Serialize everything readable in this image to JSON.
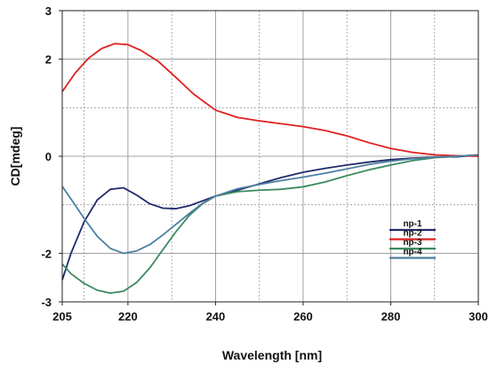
{
  "chart_data": {
    "type": "line",
    "title": "",
    "xlabel": "Wavelength [nm]",
    "ylabel": "CD[mdeg]",
    "xlim": [
      205,
      300
    ],
    "ylim": [
      -3,
      3
    ],
    "x_ticks": [
      205,
      220,
      240,
      260,
      280,
      300
    ],
    "x_tick_labels": [
      "205",
      "220",
      "240",
      "260",
      "280",
      "300"
    ],
    "y_ticks": [
      -3,
      -2,
      0,
      2,
      3
    ],
    "y_tick_labels": [
      "-3",
      "-2",
      "0",
      "2",
      "3"
    ],
    "grid": true,
    "legend_position": "lower-right",
    "series": [
      {
        "name": "np-1",
        "color": "#1f2a6b",
        "points": [
          [
            205,
            -2.55
          ],
          [
            207,
            -2.0
          ],
          [
            210,
            -1.35
          ],
          [
            213,
            -0.9
          ],
          [
            216,
            -0.68
          ],
          [
            219,
            -0.65
          ],
          [
            222,
            -0.8
          ],
          [
            225,
            -0.98
          ],
          [
            228,
            -1.07
          ],
          [
            231,
            -1.08
          ],
          [
            234,
            -1.02
          ],
          [
            237,
            -0.92
          ],
          [
            240,
            -0.82
          ],
          [
            245,
            -0.7
          ],
          [
            250,
            -0.57
          ],
          [
            255,
            -0.44
          ],
          [
            260,
            -0.33
          ],
          [
            265,
            -0.25
          ],
          [
            270,
            -0.18
          ],
          [
            275,
            -0.12
          ],
          [
            280,
            -0.07
          ],
          [
            285,
            -0.04
          ],
          [
            290,
            -0.02
          ],
          [
            295,
            -0.01
          ],
          [
            300,
            0.02
          ]
        ]
      },
      {
        "name": "np-2",
        "color": "#e02020",
        "points": [
          [
            205,
            1.33
          ],
          [
            208,
            1.72
          ],
          [
            211,
            2.02
          ],
          [
            214,
            2.22
          ],
          [
            217,
            2.32
          ],
          [
            220,
            2.3
          ],
          [
            223,
            2.18
          ],
          [
            227,
            1.95
          ],
          [
            231,
            1.62
          ],
          [
            235,
            1.28
          ],
          [
            240,
            0.95
          ],
          [
            245,
            0.8
          ],
          [
            250,
            0.73
          ],
          [
            255,
            0.67
          ],
          [
            260,
            0.61
          ],
          [
            265,
            0.53
          ],
          [
            270,
            0.42
          ],
          [
            275,
            0.28
          ],
          [
            280,
            0.16
          ],
          [
            285,
            0.08
          ],
          [
            290,
            0.03
          ],
          [
            295,
            0.01
          ],
          [
            300,
            0.0
          ]
        ]
      },
      {
        "name": "np-3",
        "color": "#3a8a60",
        "points": [
          [
            205,
            -2.22
          ],
          [
            207,
            -2.42
          ],
          [
            210,
            -2.62
          ],
          [
            213,
            -2.76
          ],
          [
            216,
            -2.82
          ],
          [
            219,
            -2.78
          ],
          [
            222,
            -2.6
          ],
          [
            225,
            -2.3
          ],
          [
            228,
            -1.92
          ],
          [
            231,
            -1.55
          ],
          [
            234,
            -1.22
          ],
          [
            237,
            -0.98
          ],
          [
            240,
            -0.82
          ],
          [
            245,
            -0.73
          ],
          [
            250,
            -0.7
          ],
          [
            255,
            -0.68
          ],
          [
            260,
            -0.63
          ],
          [
            265,
            -0.53
          ],
          [
            270,
            -0.4
          ],
          [
            275,
            -0.28
          ],
          [
            280,
            -0.18
          ],
          [
            285,
            -0.09
          ],
          [
            290,
            -0.03
          ],
          [
            295,
            0.0
          ],
          [
            300,
            0.03
          ]
        ]
      },
      {
        "name": "np-4",
        "color": "#4d7fa0",
        "points": [
          [
            205,
            -0.62
          ],
          [
            207,
            -0.88
          ],
          [
            210,
            -1.28
          ],
          [
            213,
            -1.65
          ],
          [
            216,
            -1.9
          ],
          [
            219,
            -2.0
          ],
          [
            222,
            -1.95
          ],
          [
            225,
            -1.82
          ],
          [
            228,
            -1.62
          ],
          [
            231,
            -1.4
          ],
          [
            234,
            -1.18
          ],
          [
            237,
            -0.97
          ],
          [
            240,
            -0.82
          ],
          [
            245,
            -0.67
          ],
          [
            250,
            -0.58
          ],
          [
            255,
            -0.5
          ],
          [
            260,
            -0.43
          ],
          [
            265,
            -0.35
          ],
          [
            270,
            -0.26
          ],
          [
            275,
            -0.17
          ],
          [
            280,
            -0.1
          ],
          [
            285,
            -0.05
          ],
          [
            290,
            -0.02
          ],
          [
            295,
            0.0
          ],
          [
            300,
            0.03
          ]
        ]
      }
    ]
  }
}
